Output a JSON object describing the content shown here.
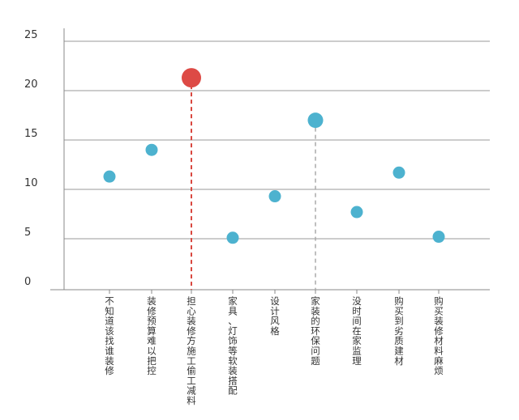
{
  "chart_data": {
    "type": "scatter",
    "title": "",
    "xlabel": "",
    "ylabel": "",
    "ylim": [
      0,
      25
    ],
    "yticks": [
      0,
      5,
      10,
      15,
      20,
      25
    ],
    "grid": true,
    "categories": [
      "不知道该找谁装修",
      "装修预算难以把控",
      "担心装修方施工偷工减料",
      "家具、灯饰等软装搭配",
      "设计风格",
      "家装的环保问题",
      "没时间在家监理",
      "购买到劣质建材",
      "购买装修材料麻烦"
    ],
    "values": [
      11.3,
      14.0,
      21.3,
      5.1,
      9.3,
      17.0,
      7.7,
      11.7,
      5.2
    ],
    "highlight": [
      false,
      false,
      true,
      false,
      false,
      true,
      false,
      false,
      false
    ],
    "colors": {
      "point": "#4db2cf",
      "highlight_point": "#dd4a45",
      "highlight_line_red": "#d9473f",
      "highlight_line_gray": "#aaaaaa",
      "grid": "#9a9a9a",
      "axis": "#888888"
    }
  }
}
